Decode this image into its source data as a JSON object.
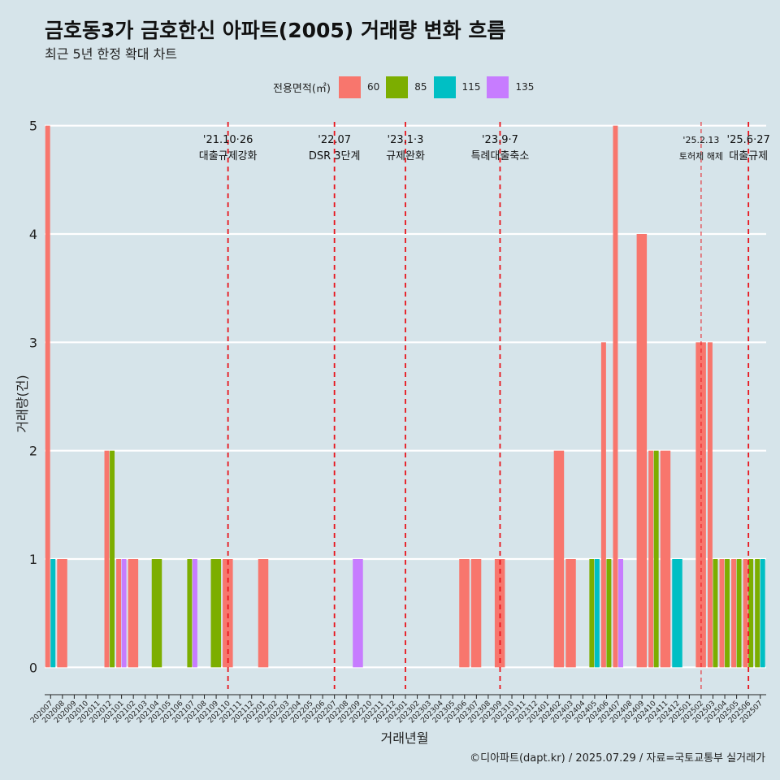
{
  "header": {
    "title": "금호동3가 금호한신 아파트(2005) 거래량 변화 흐름",
    "subtitle": "최근 5년 한정 확대 차트"
  },
  "legend": {
    "title": "전용면적(㎡)",
    "items": [
      {
        "label": "60",
        "color": "#f8766d"
      },
      {
        "label": "85",
        "color": "#7cae00"
      },
      {
        "label": "115",
        "color": "#00bfc4"
      },
      {
        "label": "135",
        "color": "#c77cff"
      }
    ]
  },
  "caption": "©디아파트(dapt.kr) / 2025.07.29 / 자료=국토교통부 실거래가",
  "chart_data": {
    "type": "bar",
    "xlabel": "거래년월",
    "ylabel": "거래량(건)",
    "ylim": [
      -0.2,
      5.05
    ],
    "yticks": [
      0,
      1,
      2,
      3,
      4,
      5
    ],
    "categories": [
      "202007",
      "202008",
      "202009",
      "202010",
      "202011",
      "202012",
      "202101",
      "202102",
      "202103",
      "202104",
      "202105",
      "202106",
      "202107",
      "202108",
      "202109",
      "202110",
      "202111",
      "202112",
      "202201",
      "202202",
      "202203",
      "202204",
      "202205",
      "202206",
      "202207",
      "202208",
      "202209",
      "202210",
      "202211",
      "202212",
      "202301",
      "202302",
      "202303",
      "202304",
      "202305",
      "202306",
      "202307",
      "202308",
      "202309",
      "202310",
      "202311",
      "202312",
      "202401",
      "202402",
      "202403",
      "202404",
      "202405",
      "202406",
      "202407",
      "202408",
      "202409",
      "202410",
      "202411",
      "202412",
      "202501",
      "202502",
      "202503",
      "202504",
      "202505",
      "202506",
      "202507"
    ],
    "series": [
      {
        "name": "60",
        "color": "#f8766d",
        "values": [
          5,
          1,
          0,
          0,
          0,
          2,
          1,
          1,
          0,
          0,
          0,
          0,
          0,
          0,
          0,
          1,
          0,
          0,
          1,
          0,
          0,
          0,
          0,
          0,
          0,
          0,
          0,
          0,
          0,
          0,
          0,
          0,
          0,
          0,
          0,
          1,
          1,
          0,
          1,
          0,
          0,
          0,
          0,
          2,
          1,
          0,
          0,
          3,
          5,
          0,
          4,
          2,
          2,
          0,
          0,
          3,
          3,
          1,
          1,
          1,
          0
        ]
      },
      {
        "name": "85",
        "color": "#7cae00",
        "values": [
          0,
          0,
          0,
          0,
          0,
          2,
          0,
          0,
          0,
          1,
          0,
          0,
          1,
          0,
          1,
          0,
          0,
          0,
          0,
          0,
          0,
          0,
          0,
          0,
          0,
          0,
          0,
          0,
          0,
          0,
          0,
          0,
          0,
          0,
          0,
          0,
          0,
          0,
          0,
          0,
          0,
          0,
          0,
          0,
          0,
          0,
          1,
          1,
          0,
          0,
          0,
          2,
          0,
          0,
          0,
          0,
          1,
          1,
          1,
          1,
          1
        ]
      },
      {
        "name": "115",
        "color": "#00bfc4",
        "values": [
          1,
          0,
          0,
          0,
          0,
          0,
          0,
          0,
          0,
          0,
          0,
          0,
          0,
          0,
          0,
          0,
          0,
          0,
          0,
          0,
          0,
          0,
          0,
          0,
          0,
          0,
          0,
          0,
          0,
          0,
          0,
          0,
          0,
          0,
          0,
          0,
          0,
          0,
          0,
          0,
          0,
          0,
          0,
          0,
          0,
          0,
          1,
          0,
          0,
          0,
          0,
          0,
          0,
          1,
          0,
          0,
          0,
          0,
          0,
          0,
          1
        ]
      },
      {
        "name": "135",
        "color": "#c77cff",
        "values": [
          0,
          0,
          0,
          0,
          0,
          0,
          1,
          0,
          0,
          0,
          0,
          0,
          1,
          0,
          0,
          0,
          0,
          0,
          0,
          0,
          0,
          0,
          0,
          0,
          0,
          0,
          1,
          0,
          0,
          0,
          0,
          0,
          0,
          0,
          0,
          0,
          0,
          0,
          0,
          0,
          0,
          0,
          0,
          0,
          0,
          0,
          0,
          0,
          1,
          0,
          0,
          0,
          0,
          0,
          0,
          0,
          0,
          0,
          0,
          0,
          0
        ]
      }
    ],
    "annotations": [
      {
        "date": "202110",
        "label1": "'21.10·26",
        "label2": "대출규제강화",
        "style": "dashed"
      },
      {
        "date": "202207",
        "label1": "'22.07",
        "label2": "DSR 3단계",
        "style": "dashed"
      },
      {
        "date": "202301",
        "label1": "'23.1·3",
        "label2": "규제완화",
        "style": "dashed"
      },
      {
        "date": "202309",
        "label1": "'23.9·7",
        "label2": "특례대출축소",
        "style": "dashed"
      },
      {
        "date": "202502",
        "label1": "'25.2.13",
        "label2": "토허제 해제",
        "style": "thin"
      },
      {
        "date": "202506",
        "label1": "'25.6·27",
        "label2": "대출규제",
        "style": "dashed"
      }
    ]
  }
}
